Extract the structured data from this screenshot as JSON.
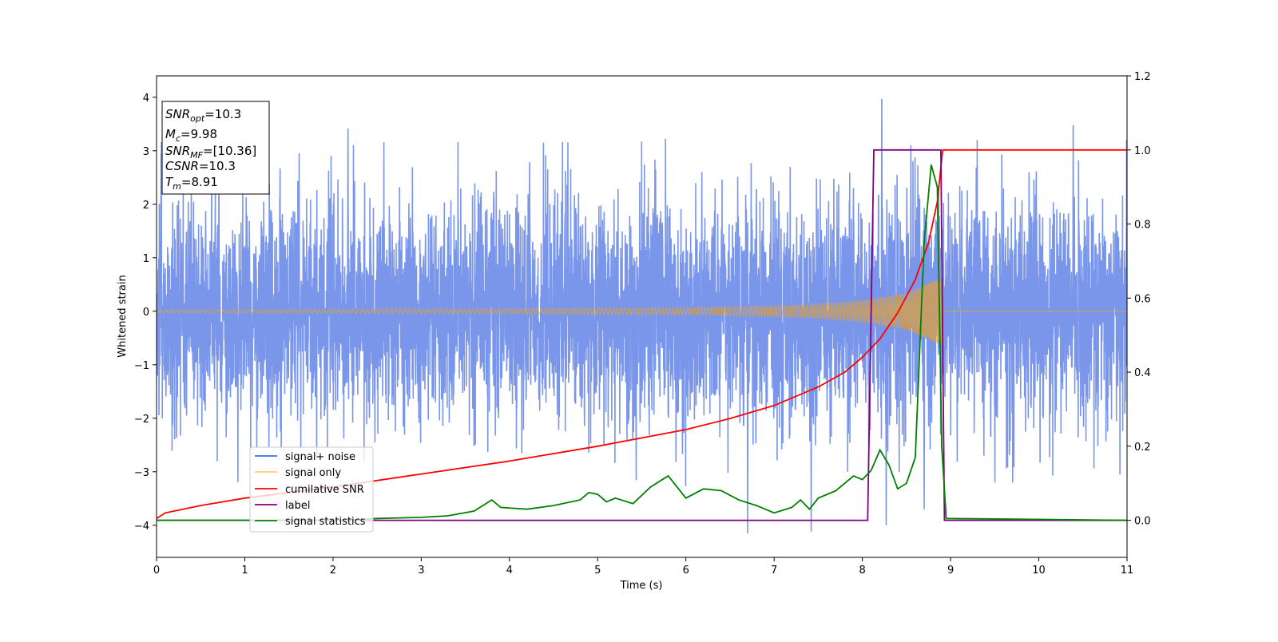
{
  "chart_data": {
    "type": "line",
    "xlabel": "Time (s)",
    "ylabel": "Whitened strain",
    "xlim": [
      0,
      11
    ],
    "ylim": [
      -4.6,
      4.4
    ],
    "y2lim": [
      -0.1,
      1.2
    ],
    "x_ticks": [
      0,
      1,
      2,
      3,
      4,
      5,
      6,
      7,
      8,
      9,
      10,
      11
    ],
    "y_ticks": [
      -4,
      -3,
      -2,
      -1,
      0,
      1,
      2,
      3,
      4
    ],
    "y_tick_labels": [
      "−4",
      "−3",
      "−2",
      "−1",
      "0",
      "1",
      "2",
      "3",
      "4"
    ],
    "y2_ticks": [
      0.0,
      0.2,
      0.4,
      0.6,
      0.8,
      1.0,
      1.2
    ],
    "y2_tick_labels": [
      "0.0",
      "0.2",
      "0.4",
      "0.6",
      "0.8",
      "1.0",
      "1.2"
    ],
    "grid": false,
    "legend_position": "lower-left",
    "info_box": {
      "snr_opt": {
        "base": "SNR",
        "sub": "opt",
        "value": "=10.3"
      },
      "mc": {
        "base": "M",
        "sub": "c",
        "value": "=9.98"
      },
      "snr_mf": {
        "base": "SNR",
        "sub": "MF",
        "value": "=[10.36]"
      },
      "csnr": {
        "base": "CSNR",
        "value": "=10.3"
      },
      "tm": {
        "base": "T",
        "sub": "m",
        "value": "=8.91"
      }
    },
    "series": [
      {
        "name": "signal+ noise",
        "axis": "left",
        "color": "#4169e1",
        "kind": "noise",
        "noise_std": 1.05,
        "x_range": [
          0,
          11
        ],
        "notable_peaks": [
          [
            8.22,
            3.97
          ],
          [
            8.55,
            3.1
          ],
          [
            2.17,
            3.42
          ],
          [
            10.39,
            3.48
          ],
          [
            8.7,
            -3.7
          ],
          [
            6.7,
            -4.15
          ],
          [
            7.42,
            -4.12
          ],
          [
            8.27,
            -4.0
          ]
        ]
      },
      {
        "name": "signal only",
        "axis": "left",
        "color": "#ffa500",
        "kind": "chirp",
        "merger_time": 8.91,
        "envelope": [
          [
            0,
            0.03
          ],
          [
            1,
            0.035
          ],
          [
            2,
            0.04
          ],
          [
            3,
            0.045
          ],
          [
            4,
            0.05
          ],
          [
            5,
            0.06
          ],
          [
            6,
            0.07
          ],
          [
            7,
            0.1
          ],
          [
            7.5,
            0.13
          ],
          [
            8,
            0.2
          ],
          [
            8.5,
            0.34
          ],
          [
            8.85,
            0.6
          ],
          [
            8.91,
            0.62
          ]
        ]
      },
      {
        "name": "cumilative SNR",
        "axis": "right",
        "color": "#ff0000",
        "kind": "line",
        "points": [
          [
            0,
            0.005
          ],
          [
            0.1,
            0.02
          ],
          [
            0.5,
            0.04
          ],
          [
            1,
            0.06
          ],
          [
            2,
            0.09
          ],
          [
            3,
            0.125
          ],
          [
            4,
            0.16
          ],
          [
            5,
            0.2
          ],
          [
            6,
            0.245
          ],
          [
            6.5,
            0.275
          ],
          [
            7,
            0.31
          ],
          [
            7.5,
            0.36
          ],
          [
            7.8,
            0.4
          ],
          [
            8,
            0.44
          ],
          [
            8.2,
            0.49
          ],
          [
            8.4,
            0.56
          ],
          [
            8.6,
            0.65
          ],
          [
            8.75,
            0.75
          ],
          [
            8.85,
            0.86
          ],
          [
            8.91,
            1.0
          ],
          [
            11,
            1.0
          ]
        ]
      },
      {
        "name": "label",
        "axis": "right",
        "color": "#800080",
        "kind": "line",
        "points": [
          [
            0,
            0.0
          ],
          [
            8.06,
            0.0
          ],
          [
            8.13,
            1.0
          ],
          [
            8.89,
            1.0
          ],
          [
            8.93,
            0.0
          ],
          [
            11,
            0.0
          ]
        ]
      },
      {
        "name": "signal statistics",
        "axis": "right",
        "color": "#008000",
        "kind": "line",
        "points": [
          [
            0,
            0.0
          ],
          [
            2.0,
            0.0
          ],
          [
            2.5,
            0.005
          ],
          [
            3.0,
            0.008
          ],
          [
            3.3,
            0.012
          ],
          [
            3.6,
            0.025
          ],
          [
            3.8,
            0.055
          ],
          [
            3.9,
            0.035
          ],
          [
            4.2,
            0.03
          ],
          [
            4.5,
            0.04
          ],
          [
            4.8,
            0.055
          ],
          [
            4.9,
            0.075
          ],
          [
            5.0,
            0.07
          ],
          [
            5.1,
            0.05
          ],
          [
            5.2,
            0.06
          ],
          [
            5.4,
            0.045
          ],
          [
            5.6,
            0.09
          ],
          [
            5.8,
            0.12
          ],
          [
            5.9,
            0.09
          ],
          [
            6.0,
            0.06
          ],
          [
            6.2,
            0.085
          ],
          [
            6.4,
            0.08
          ],
          [
            6.6,
            0.055
          ],
          [
            6.8,
            0.04
          ],
          [
            7.0,
            0.02
          ],
          [
            7.2,
            0.035
          ],
          [
            7.3,
            0.055
          ],
          [
            7.4,
            0.03
          ],
          [
            7.5,
            0.06
          ],
          [
            7.7,
            0.08
          ],
          [
            7.9,
            0.12
          ],
          [
            8.0,
            0.11
          ],
          [
            8.1,
            0.135
          ],
          [
            8.2,
            0.19
          ],
          [
            8.3,
            0.15
          ],
          [
            8.4,
            0.085
          ],
          [
            8.5,
            0.1
          ],
          [
            8.6,
            0.17
          ],
          [
            8.7,
            0.75
          ],
          [
            8.78,
            0.96
          ],
          [
            8.85,
            0.9
          ],
          [
            8.9,
            0.2
          ],
          [
            8.95,
            0.005
          ],
          [
            11,
            0.0
          ]
        ]
      }
    ]
  }
}
